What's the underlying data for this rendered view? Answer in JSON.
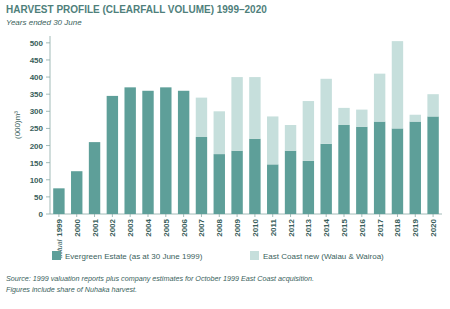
{
  "chart_data": {
    "type": "bar",
    "title": "HARVEST PROFILE (CLEARFALL VOLUME) 1999–2020",
    "subtitle": "Years ended 30 June",
    "y_label": "(000)m³",
    "annotations": [
      "actual"
    ],
    "notes": [
      "Source: 1999 valuation reports plus company estimates for October 1999 East Coast acquisition.",
      "Figures include share of Nuhaka harvest."
    ],
    "categories": [
      "1999",
      "2000",
      "2001",
      "2002",
      "2003",
      "2004",
      "2005",
      "2006",
      "2007",
      "2008",
      "2009",
      "2010",
      "2011",
      "2012",
      "2013",
      "2014",
      "2015",
      "2016",
      "2017",
      "2018",
      "2019",
      "2020"
    ],
    "series": [
      {
        "name": "Evergreen Estate (as at 30 June 1999)",
        "color": "#5e9f99",
        "values": [
          75,
          125,
          210,
          345,
          370,
          360,
          370,
          360,
          225,
          175,
          185,
          220,
          145,
          185,
          155,
          205,
          260,
          255,
          270,
          250,
          270,
          285
        ]
      },
      {
        "name": "East Coast new (Waiau & Wairoa)",
        "color": "#c6dfdc",
        "values": [
          0,
          0,
          0,
          0,
          0,
          0,
          0,
          0,
          115,
          125,
          215,
          180,
          140,
          75,
          175,
          190,
          50,
          50,
          140,
          255,
          20,
          65
        ]
      }
    ],
    "stacked": true,
    "grid": false,
    "legend": "bottom",
    "ylim": [
      0,
      520
    ],
    "yticks": [
      0,
      50,
      100,
      150,
      200,
      250,
      300,
      350,
      400,
      450,
      500
    ]
  }
}
